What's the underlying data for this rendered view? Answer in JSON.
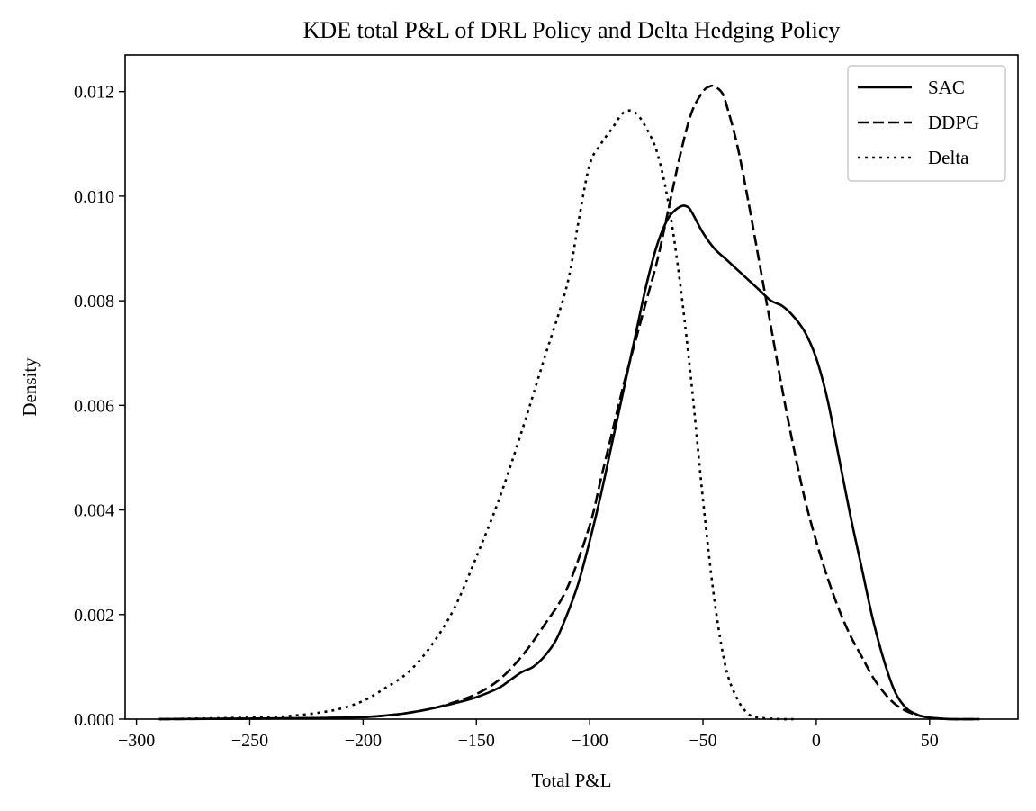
{
  "chart_data": {
    "type": "line",
    "title": "KDE total P&L of DRL Policy and Delta Hedging Policy",
    "xlabel": "Total P&L",
    "ylabel": "Density",
    "xlim": [
      -305,
      89
    ],
    "ylim": [
      0,
      0.0127
    ],
    "xticks": [
      -300,
      -250,
      -200,
      -150,
      -100,
      -50,
      0,
      50
    ],
    "xtick_labels": [
      "−300",
      "−250",
      "−200",
      "−150",
      "−100",
      "−50",
      "0",
      "50"
    ],
    "yticks": [
      0,
      0.002,
      0.004,
      0.006,
      0.008,
      0.01,
      0.012
    ],
    "ytick_labels": [
      "0.000",
      "0.002",
      "0.004",
      "0.006",
      "0.008",
      "0.010",
      "0.012"
    ],
    "grid": false,
    "legend_position": "top-right",
    "series": [
      {
        "name": "SAC",
        "style": "solid",
        "color": "#000000",
        "x": [
          -290,
          -250,
          -220,
          -200,
          -190,
          -180,
          -170,
          -160,
          -150,
          -140,
          -135,
          -130,
          -125,
          -120,
          -115,
          -110,
          -105,
          -100,
          -95,
          -90,
          -85,
          -80,
          -75,
          -70,
          -65,
          -60,
          -57,
          -55,
          -50,
          -45,
          -40,
          -35,
          -30,
          -25,
          -20,
          -15,
          -10,
          -5,
          0,
          5,
          10,
          15,
          20,
          25,
          30,
          35,
          40,
          45,
          50,
          55,
          60,
          65,
          72
        ],
        "y": [
          0,
          1e-05,
          2e-05,
          4e-05,
          7e-05,
          0.00012,
          0.0002,
          0.0003,
          0.00042,
          0.0006,
          0.00075,
          0.0009,
          0.001,
          0.0012,
          0.0015,
          0.002,
          0.0026,
          0.0034,
          0.0043,
          0.0053,
          0.0063,
          0.0073,
          0.0083,
          0.0091,
          0.0096,
          0.0098,
          0.0098,
          0.0097,
          0.0093,
          0.009,
          0.0088,
          0.0086,
          0.0084,
          0.0082,
          0.008,
          0.0079,
          0.0077,
          0.0074,
          0.0069,
          0.0061,
          0.005,
          0.0039,
          0.0029,
          0.0019,
          0.0011,
          0.0005,
          0.0002,
          8e-05,
          3e-05,
          1e-05,
          0,
          0,
          0
        ]
      },
      {
        "name": "DDPG",
        "style": "dashed",
        "color": "#000000",
        "x": [
          -290,
          -250,
          -220,
          -200,
          -190,
          -180,
          -170,
          -160,
          -150,
          -140,
          -130,
          -120,
          -110,
          -100,
          -95,
          -90,
          -85,
          -80,
          -75,
          -70,
          -65,
          -60,
          -55,
          -50,
          -47,
          -45,
          -42,
          -40,
          -35,
          -30,
          -25,
          -20,
          -15,
          -10,
          -5,
          0,
          5,
          10,
          15,
          20,
          25,
          30,
          35,
          40,
          45,
          50,
          55,
          60,
          72
        ],
        "y": [
          0,
          1e-05,
          2e-05,
          4e-05,
          7e-05,
          0.00012,
          0.0002,
          0.00032,
          0.00048,
          0.00075,
          0.0012,
          0.0018,
          0.0025,
          0.0037,
          0.0046,
          0.0055,
          0.0064,
          0.0072,
          0.008,
          0.0088,
          0.0098,
          0.0108,
          0.0116,
          0.012,
          0.0121,
          0.0121,
          0.012,
          0.0118,
          0.011,
          0.0099,
          0.0087,
          0.0075,
          0.0063,
          0.0052,
          0.0042,
          0.0034,
          0.0027,
          0.0021,
          0.0016,
          0.0012,
          0.0008,
          0.0005,
          0.00028,
          0.00015,
          7e-05,
          3e-05,
          1e-05,
          0,
          0
        ]
      },
      {
        "name": "Delta",
        "style": "dotted",
        "color": "#000000",
        "x": [
          -290,
          -260,
          -240,
          -230,
          -220,
          -210,
          -200,
          -190,
          -180,
          -170,
          -160,
          -150,
          -140,
          -130,
          -120,
          -110,
          -105,
          -100,
          -95,
          -90,
          -85,
          -80,
          -75,
          -70,
          -65,
          -60,
          -55,
          -50,
          -45,
          -40,
          -35,
          -30,
          -25,
          -20,
          -15,
          -10
        ],
        "y": [
          0,
          2e-05,
          4e-05,
          7e-05,
          0.00012,
          0.0002,
          0.00035,
          0.0006,
          0.0009,
          0.0014,
          0.0021,
          0.0031,
          0.0042,
          0.0055,
          0.0069,
          0.0083,
          0.0095,
          0.0106,
          0.011,
          0.0113,
          0.0116,
          0.0116,
          0.0113,
          0.0108,
          0.0098,
          0.0083,
          0.0064,
          0.0042,
          0.0023,
          0.001,
          0.0004,
          0.0001,
          3e-05,
          1e-05,
          0,
          0
        ]
      }
    ]
  }
}
